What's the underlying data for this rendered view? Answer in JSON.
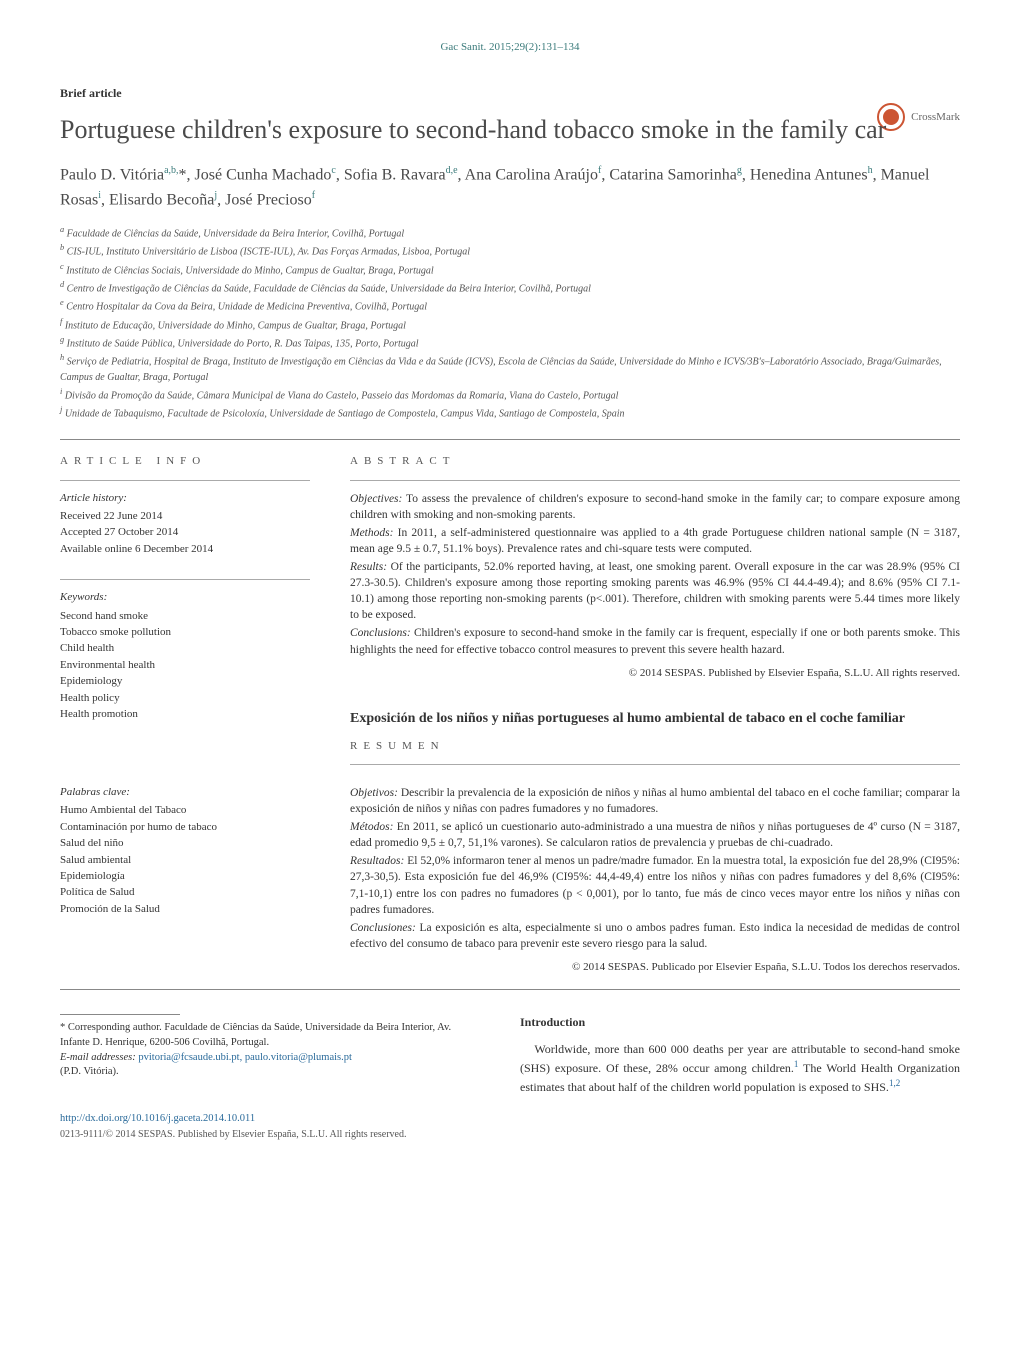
{
  "journal_ref": "Gac Sanit. 2015;29(2):131–134",
  "article_type": "Brief article",
  "title": "Portuguese children's exposure to second-hand tobacco smoke in the family car",
  "crossmark_label": "CrossMark",
  "authors_html": "Paulo D. Vitória<sup>a,b,</sup>*, José Cunha Machado<sup>c</sup>, Sofia B. Ravara<sup>d,e</sup>, Ana Carolina Araújo<sup>f</sup>, Catarina Samorinha<sup>g</sup>, Henedina Antunes<sup>h</sup>, Manuel Rosas<sup>i</sup>, Elisardo Becoña<sup>j</sup>, José Precioso<sup>f</sup>",
  "affiliations": [
    "a Faculdade de Ciências da Saúde, Universidade da Beira Interior, Covilhã, Portugal",
    "b CIS-IUL, Instituto Universitário de Lisboa (ISCTE-IUL), Av. Das Forças Armadas, Lisboa, Portugal",
    "c Instituto de Ciências Sociais, Universidade do Minho, Campus de Gualtar, Braga, Portugal",
    "d Centro de Investigação de Ciências da Saúde, Faculdade de Ciências da Saúde, Universidade da Beira Interior, Covilhã, Portugal",
    "e Centro Hospitalar da Cova da Beira, Unidade de Medicina Preventiva, Covilhã, Portugal",
    "f Instituto de Educação, Universidade do Minho, Campus de Gualtar, Braga, Portugal",
    "g Instituto de Saúde Pública, Universidade do Porto, R. Das Taipas, 135, Porto, Portugal",
    "h Serviço de Pediatria, Hospital de Braga, Instituto de Investigação em Ciências da Vida e da Saúde (ICVS), Escola de Ciências da Saúde, Universidade do Minho e ICVS/3B's–Laboratório Associado, Braga/Guimarães, Campus de Gualtar, Braga, Portugal",
    "i Divisão da Promoção da Saúde, Câmara Municipal de Viana do Castelo, Passeio das Mordomas da Romaria, Viana do Castelo, Portugal",
    "j Unidade de Tabaquismo, Facultade de Psicoloxía, Universidade de Santiago de Compostela, Campus Vida, Santiago de Compostela, Spain"
  ],
  "info": {
    "heading": "ARTICLE INFO",
    "history_label": "Article history:",
    "history": [
      "Received 22 June 2014",
      "Accepted 27 October 2014",
      "Available online 6 December 2014"
    ],
    "keywords_label": "Keywords:",
    "keywords": [
      "Second hand smoke",
      "Tobacco smoke pollution",
      "Child health",
      "Environmental health",
      "Epidemiology",
      "Health policy",
      "Health promotion"
    ],
    "palabras_label": "Palabras clave:",
    "palabras": [
      "Humo Ambiental del Tabaco",
      "Contaminación por humo de tabaco",
      "Salud del niño",
      "Salud ambiental",
      "Epidemiología",
      "Política de Salud",
      "Promoción de la Salud"
    ]
  },
  "abstract": {
    "heading": "ABSTRACT",
    "parts": [
      {
        "label": "Objectives:",
        "text": "To assess the prevalence of children's exposure to second-hand smoke in the family car; to compare exposure among children with smoking and non-smoking parents."
      },
      {
        "label": "Methods:",
        "text": "In 2011, a self-administered questionnaire was applied to a 4th grade Portuguese children national sample (N = 3187, mean age 9.5 ± 0.7, 51.1% boys). Prevalence rates and chi-square tests were computed."
      },
      {
        "label": "Results:",
        "text": "Of the participants, 52.0% reported having, at least, one smoking parent. Overall exposure in the car was 28.9% (95% CI 27.3-30.5). Children's exposure among those reporting smoking parents was 46.9% (95% CI 44.4-49.4); and 8.6% (95% CI 7.1-10.1) among those reporting non-smoking parents (p<.001). Therefore, children with smoking parents were 5.44 times more likely to be exposed."
      },
      {
        "label": "Conclusions:",
        "text": "Children's exposure to second-hand smoke in the family car is frequent, especially if one or both parents smoke. This highlights the need for effective tobacco control measures to prevent this severe health hazard."
      }
    ],
    "copyright": "© 2014 SESPAS. Published by Elsevier España, S.L.U. All rights reserved."
  },
  "es_title": "Exposición de los niños y niñas portugueses al humo ambiental de tabaco en el coche familiar",
  "resumen": {
    "heading": "RESUMEN",
    "parts": [
      {
        "label": "Objetivos:",
        "text": "Describir la prevalencia de la exposición de niños y niñas al humo ambiental del tabaco en el coche familiar; comparar la exposición de niños y niñas con padres fumadores y no fumadores."
      },
      {
        "label": "Métodos:",
        "text": "En 2011, se aplicó un cuestionario auto-administrado a una muestra de niños y niñas portugueses de 4º curso (N = 3187, edad promedio 9,5 ± 0,7, 51,1% varones). Se calcularon ratios de prevalencia y pruebas de chi-cuadrado."
      },
      {
        "label": "Resultados:",
        "text": "El 52,0% informaron tener al menos un padre/madre fumador. En la muestra total, la exposición fue del 28,9% (CI95%: 27,3-30,5). Esta exposición fue del 46,9% (CI95%: 44,4-49,4) entre los niños y niñas con padres fumadores y del 8,6% (CI95%: 7,1-10,1) entre los con padres no fumadores (p < 0,001), por lo tanto, fue más de cinco veces mayor entre los niños y niñas con padres fumadores."
      },
      {
        "label": "Conclusiones:",
        "text": "La exposición es alta, especialmente si uno o ambos padres fuman. Esto indica la necesidad de medidas de control efectivo del consumo de tabaco para prevenir este severo riesgo para la salud."
      }
    ],
    "copyright": "© 2014 SESPAS. Publicado por Elsevier España, S.L.U. Todos los derechos reservados."
  },
  "footnote": {
    "corr_text": "* Corresponding author. Faculdade de Ciências da Saúde, Universidade da Beira Interior, Av. Infante D. Henrique, 6200-506 Covilhã, Portugal.",
    "email_label": "E-mail addresses:",
    "emails": "pvitoria@fcsaude.ubi.pt, paulo.vitoria@plumais.pt",
    "email_owner": "(P.D. Vitória)."
  },
  "intro": {
    "heading": "Introduction",
    "body": "Worldwide, more than 600 000 deaths per year are attributable to second-hand smoke (SHS) exposure. Of these, 28% occur among children.¹ The World Health Organization estimates that about half of the children world population is exposed to SHS.¹,²"
  },
  "doi": {
    "url": "http://dx.doi.org/10.1016/j.gaceta.2014.10.011",
    "issn": "0213-9111/© 2014 SESPAS. Published by Elsevier España, S.L.U. All rights reserved."
  }
}
